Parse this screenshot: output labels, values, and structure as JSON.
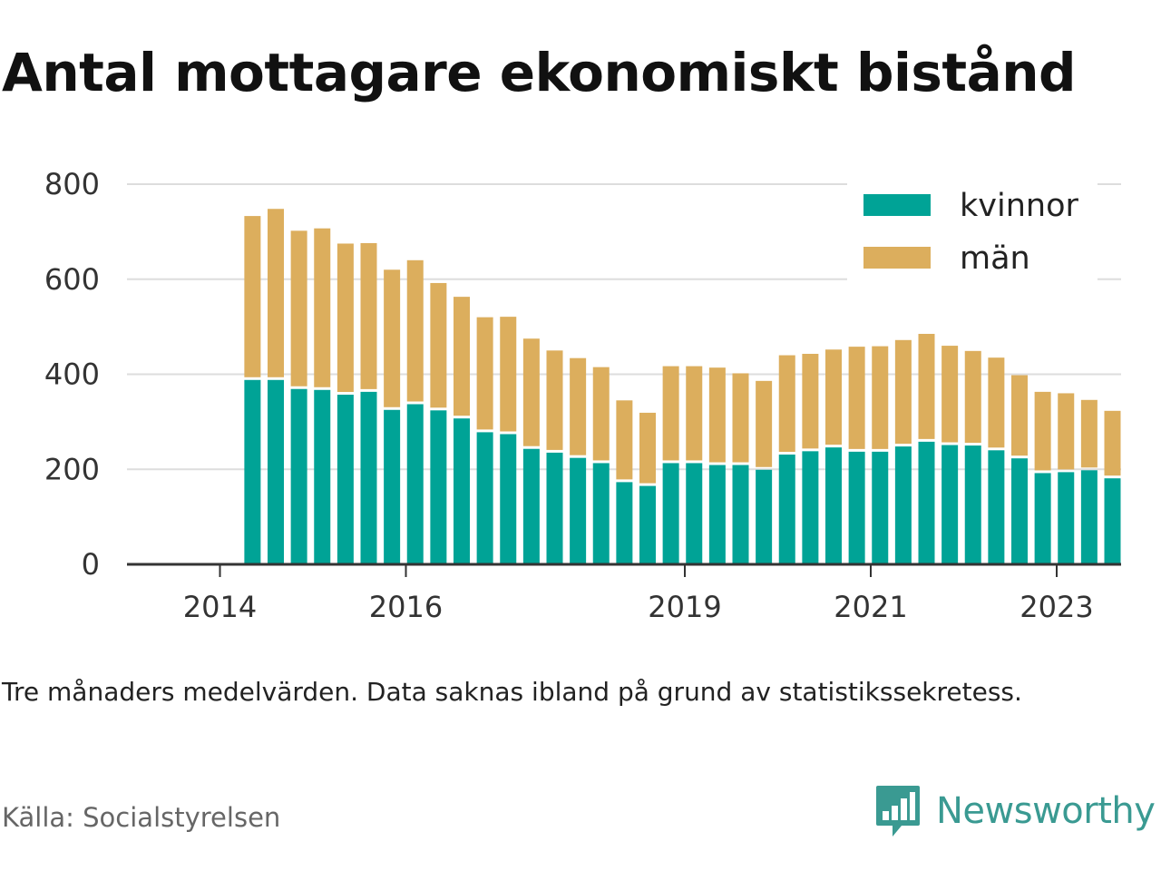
{
  "title": "Antal mottagare ekonomiskt bistånd",
  "note": "Tre månaders medelvärden. Data saknas ibland på grund av statistikssekretess.",
  "source": "Källa: Socialstyrelsen",
  "brand": {
    "name": "Newsworthy",
    "logo_icon": "newsworthy-logo-icon",
    "color": "#3a9a92"
  },
  "chart_data": {
    "type": "bar",
    "stacked": true,
    "title": "Antal mottagare ekonomiskt bistånd",
    "xlabel": "",
    "ylabel": "",
    "ylim": [
      0,
      800
    ],
    "yticks": [
      0,
      200,
      400,
      600,
      800
    ],
    "grid": true,
    "legend_position": "top-right",
    "xticks": [
      {
        "label": "2014",
        "year": 2014.0
      },
      {
        "label": "2016",
        "year": 2016.0
      },
      {
        "label": "2019",
        "year": 2019.0
      },
      {
        "label": "2021",
        "year": 2021.0
      },
      {
        "label": "2023",
        "year": 2023.0
      }
    ],
    "x": [
      2014.35,
      2014.6,
      2014.85,
      2015.1,
      2015.35,
      2015.6,
      2015.85,
      2016.1,
      2016.35,
      2016.6,
      2016.85,
      2017.1,
      2017.35,
      2017.6,
      2017.85,
      2018.1,
      2018.35,
      2018.6,
      2018.85,
      2019.1,
      2019.35,
      2019.6,
      2019.85,
      2020.1,
      2020.35,
      2020.6,
      2020.85,
      2021.1,
      2021.35,
      2021.6,
      2021.85,
      2022.1,
      2022.35,
      2022.6,
      2022.85,
      2023.1,
      2023.35,
      2023.6
    ],
    "series": [
      {
        "name": "kvinnor",
        "color": "#00a396",
        "values": [
          388,
          388,
          369,
          367,
          357,
          363,
          325,
          337,
          324,
          307,
          278,
          274,
          243,
          235,
          224,
          213,
          173,
          165,
          213,
          213,
          209,
          209,
          199,
          231,
          238,
          246,
          237,
          237,
          248,
          258,
          251,
          250,
          240,
          223,
          192,
          194,
          198,
          181
        ]
      },
      {
        "name": "män",
        "color": "#dcae5d",
        "values": [
          345,
          360,
          333,
          340,
          318,
          313,
          295,
          303,
          268,
          256,
          242,
          247,
          232,
          215,
          210,
          202,
          172,
          154,
          204,
          204,
          205,
          193,
          187,
          209,
          205,
          206,
          221,
          222,
          224,
          227,
          209,
          199,
          195,
          175,
          171,
          166,
          148,
          142
        ]
      }
    ]
  }
}
